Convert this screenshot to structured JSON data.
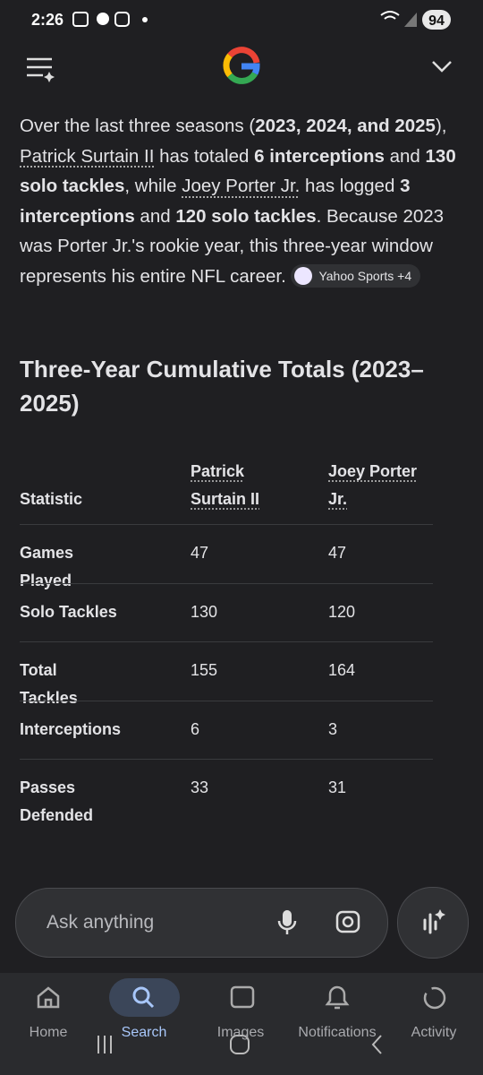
{
  "status_bar": {
    "time": "2:26",
    "battery": "94"
  },
  "answer": {
    "paragraph": [
      "Over the last three seasons (",
      "2023, 2024, and 2025",
      "), ",
      "Patrick Surtain II",
      " has totaled ",
      "6 interceptions",
      " and ",
      "130 solo tackles",
      ", while ",
      "Joey Porter Jr.",
      " has logged ",
      "3 interceptions",
      " and ",
      "120 solo tackles",
      ". Because 2023 was Porter Jr.'s rookie year, this three-year window represents his entire NFL career. "
    ],
    "source_chip": "Yahoo Sports +4",
    "heading": "Three-Year Cumulative Totals (2023–2025)",
    "table": {
      "header": [
        "Statistic",
        "Patrick Surtain II",
        "Joey Porter Jr."
      ],
      "rows": [
        [
          "Games Played",
          47,
          47
        ],
        [
          "Solo Tackles",
          130,
          120
        ],
        [
          "Total Tackles",
          155,
          164
        ],
        [
          "Interceptions",
          6,
          3
        ],
        [
          "Passes Defended",
          33,
          31
        ]
      ]
    }
  },
  "search_bar": {
    "placeholder": "Ask anything"
  },
  "bottom_nav": [
    "Home",
    "Search",
    "Images",
    "Notifications",
    "Activity"
  ]
}
